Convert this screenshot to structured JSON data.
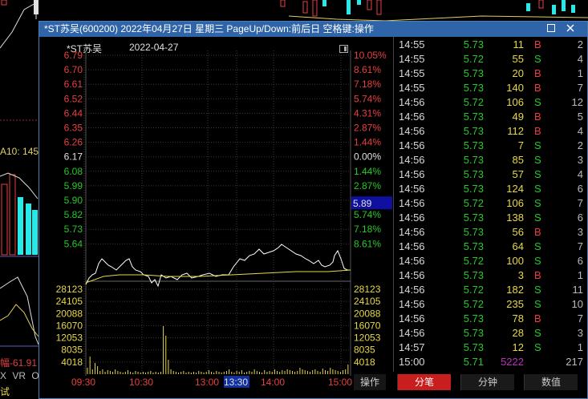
{
  "window": {
    "title": "*ST苏吴(600200)  2022年04月27日  星期三  PageUp/Down:前后日  空格键:操作",
    "restore_icon": "restore-icon",
    "close_icon": "close-icon"
  },
  "background": {
    "ma_label": "A10: 145",
    "change_label": "幅-61.91",
    "indicator_tabs": [
      "X",
      "VR",
      "OB"
    ],
    "bottom_label": "试"
  },
  "chart": {
    "stock_name": "*ST苏吴",
    "date": "2022-04-27",
    "prev_close": "6.17",
    "current_price_marker": "5.89",
    "price_ticks": [
      "6.79",
      "6.70",
      "6.61",
      "6.52",
      "6.44",
      "6.35",
      "6.26",
      "6.17",
      "6.08",
      "5.99",
      "5.90",
      "5.82",
      "5.73",
      "5.64"
    ],
    "pct_ticks": [
      "10.05%",
      "8.61%",
      "7.18%",
      "5.74%",
      "4.31%",
      "2.87%",
      "1.44%",
      "0.00%",
      "1.44%",
      "2.87%",
      "4.31%",
      "5.74%",
      "7.18%",
      "8.61%"
    ],
    "volume_ticks": [
      "28123",
      "24105",
      "20088",
      "16070",
      "12053",
      "8035",
      "4018"
    ],
    "time_labels": [
      "09:30",
      "10:30",
      "13:00",
      "13:30",
      "14:00",
      "15:00"
    ],
    "operation_tab": "操作",
    "colors": {
      "up": "#e84040",
      "down": "#28c828",
      "flat": "#e0e0e0",
      "price_line": "#ffffff",
      "avg_line": "#e8d848",
      "volume": "#e8d848"
    }
  },
  "ticks": {
    "rows": [
      {
        "time": "14:55",
        "price": "5.73",
        "vol": "11",
        "bs": "B",
        "count": "2"
      },
      {
        "time": "14:55",
        "price": "5.72",
        "vol": "55",
        "bs": "S",
        "count": "4"
      },
      {
        "time": "14:55",
        "price": "5.73",
        "vol": "20",
        "bs": "B",
        "count": "1"
      },
      {
        "time": "14:55",
        "price": "5.73",
        "vol": "140",
        "bs": "B",
        "count": "7"
      },
      {
        "time": "14:56",
        "price": "5.72",
        "vol": "106",
        "bs": "S",
        "count": "12"
      },
      {
        "time": "14:56",
        "price": "5.73",
        "vol": "49",
        "bs": "B",
        "count": "5"
      },
      {
        "time": "14:56",
        "price": "5.73",
        "vol": "112",
        "bs": "B",
        "count": "4"
      },
      {
        "time": "14:56",
        "price": "5.73",
        "vol": "7",
        "bs": "S",
        "count": "2"
      },
      {
        "time": "14:56",
        "price": "5.73",
        "vol": "85",
        "bs": "S",
        "count": "3"
      },
      {
        "time": "14:56",
        "price": "5.73",
        "vol": "57",
        "bs": "S",
        "count": "4"
      },
      {
        "time": "14:56",
        "price": "5.73",
        "vol": "124",
        "bs": "S",
        "count": "6"
      },
      {
        "time": "14:56",
        "price": "5.72",
        "vol": "106",
        "bs": "S",
        "count": "7"
      },
      {
        "time": "14:56",
        "price": "5.73",
        "vol": "138",
        "bs": "S",
        "count": "6"
      },
      {
        "time": "14:56",
        "price": "5.73",
        "vol": "56",
        "bs": "B",
        "count": "3"
      },
      {
        "time": "14:56",
        "price": "5.73",
        "vol": "64",
        "bs": "S",
        "count": "7"
      },
      {
        "time": "14:56",
        "price": "5.72",
        "vol": "100",
        "bs": "S",
        "count": "6"
      },
      {
        "time": "14:56",
        "price": "5.73",
        "vol": "3",
        "bs": "B",
        "count": "1"
      },
      {
        "time": "14:56",
        "price": "5.72",
        "vol": "182",
        "bs": "S",
        "count": "11"
      },
      {
        "time": "14:56",
        "price": "5.72",
        "vol": "235",
        "bs": "S",
        "count": "10"
      },
      {
        "time": "14:56",
        "price": "5.73",
        "vol": "78",
        "bs": "B",
        "count": "7"
      },
      {
        "time": "14:56",
        "price": "5.73",
        "vol": "28",
        "bs": "S",
        "count": "3"
      },
      {
        "time": "14:57",
        "price": "5.73",
        "vol": "12",
        "bs": "S",
        "count": "1"
      },
      {
        "time": "15:00",
        "price": "5.71",
        "vol": "5222",
        "bs": "",
        "count": "217"
      }
    ]
  },
  "bottom_tabs": [
    "分笔",
    "分钟",
    "数值"
  ]
}
